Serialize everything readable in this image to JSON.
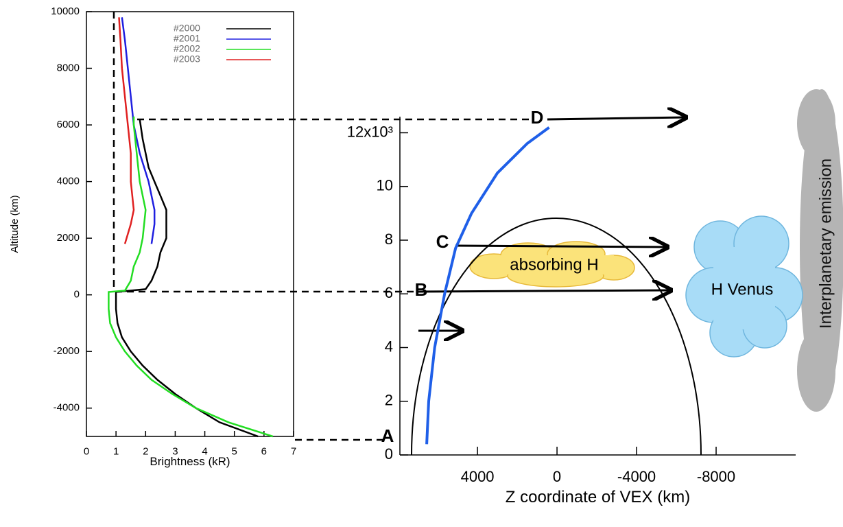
{
  "chart_data": [
    {
      "type": "line",
      "xlabel": "Brightness (kR)",
      "ylabel": "Altitude (km)",
      "xlim": [
        0,
        7
      ],
      "ylim": [
        -5000,
        10000
      ],
      "xticks": [
        0,
        1,
        2,
        3,
        4,
        5,
        6,
        7
      ],
      "yticks": [
        -4000,
        -2000,
        0,
        2000,
        4000,
        6000,
        8000,
        10000
      ],
      "legend": "upper right",
      "series": [
        {
          "name": "#2000",
          "color": "#000000",
          "x": [
            5.8,
            4.5,
            3.7,
            3.0,
            2.4,
            1.9,
            1.5,
            1.2,
            1.05,
            1.0,
            1.0,
            2.0,
            2.2,
            2.4,
            2.5,
            2.7,
            2.7,
            2.7,
            2.5,
            2.3,
            2.1,
            2.0,
            1.9,
            1.8
          ],
          "y": [
            -5000,
            -4500,
            -4000,
            -3500,
            -3000,
            -2500,
            -2000,
            -1500,
            -1000,
            -500,
            100,
            200,
            500,
            1000,
            1500,
            2000,
            2500,
            3000,
            3500,
            4000,
            4500,
            5000,
            5500,
            6200
          ]
        },
        {
          "name": "#2001",
          "color": "#1f1fe0",
          "x": [
            2.2,
            2.3,
            2.3,
            2.2,
            2.1,
            1.8,
            1.6,
            1.5,
            1.4,
            1.3,
            1.2
          ],
          "y": [
            1800,
            2500,
            3000,
            3500,
            4000,
            5000,
            6000,
            7000,
            8000,
            9000,
            9800
          ]
        },
        {
          "name": "#2002",
          "color": "#22dd22",
          "x": [
            6.3,
            4.8,
            3.7,
            2.9,
            2.2,
            1.7,
            1.3,
            1.0,
            0.8,
            0.75,
            0.75,
            1.3,
            1.5,
            1.6,
            1.8,
            1.9,
            2.0,
            1.8,
            1.7,
            1.6,
            1.6
          ],
          "y": [
            -5000,
            -4500,
            -4000,
            -3500,
            -3000,
            -2500,
            -2000,
            -1500,
            -1000,
            -500,
            100,
            150,
            500,
            1000,
            1500,
            2000,
            3000,
            4000,
            5000,
            6000,
            6300
          ]
        },
        {
          "name": "#2003",
          "color": "#e02020",
          "x": [
            1.3,
            1.5,
            1.6,
            1.5,
            1.5,
            1.4,
            1.3,
            1.2,
            1.15,
            1.1
          ],
          "y": [
            1800,
            2500,
            3000,
            4000,
            5000,
            6000,
            7000,
            8000,
            9000,
            9800
          ]
        }
      ]
    },
    {
      "type": "line",
      "xlabel": "Z coordinate of VEX (km)",
      "xlim": [
        7900,
        -12000
      ],
      "ylim": [
        0,
        12.6
      ],
      "xticks": [
        4000,
        0,
        -4000,
        -8000
      ],
      "yticks": [
        0,
        2,
        4,
        6,
        8,
        10,
        {
          "value": 12,
          "label": "12x10³"
        }
      ],
      "series": [
        {
          "color": "#1f5fe8",
          "x": [
            6550,
            6450,
            6150,
            5650,
            5100,
            4300,
            3000,
            1500,
            400
          ],
          "y": [
            0.4,
            2,
            4,
            6,
            7.7,
            9,
            10.5,
            11.6,
            12.2
          ]
        }
      ],
      "point_labels": [
        "A",
        "B",
        "C",
        "D"
      ],
      "annotations": [
        "absorbing H",
        "H Venus",
        "Interplanetary emission"
      ]
    }
  ]
}
